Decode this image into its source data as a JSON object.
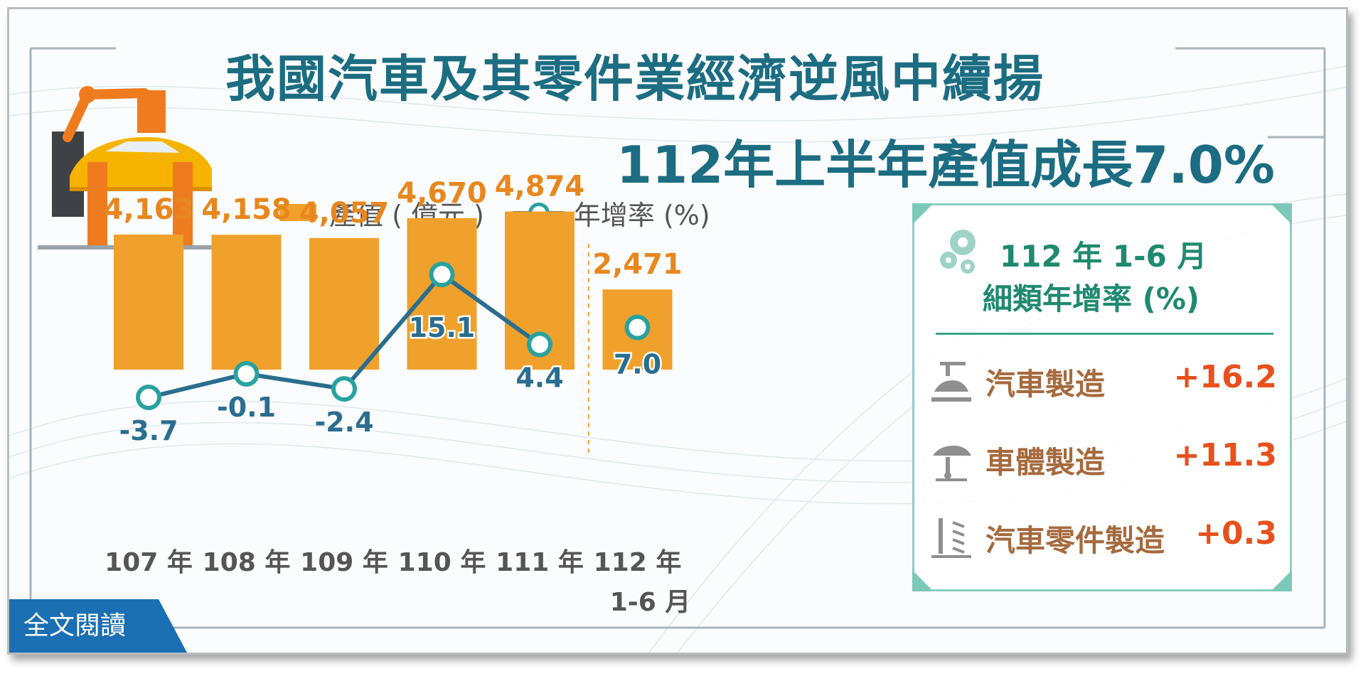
{
  "title": "我國汽車及其零件業經濟逆風中續揚",
  "subtitle": "112年上半年產值成長7.0%",
  "legend": {
    "bar": "產值 ( 億元 )",
    "line": "年增率 (%)"
  },
  "chart_data": {
    "type": "bar",
    "categories": [
      "107 年",
      "108 年",
      "109 年",
      "110 年",
      "111 年",
      "112 年\n1-6 月"
    ],
    "series": [
      {
        "name": "產值 ( 億元 )",
        "type": "bar",
        "values": [
          4163,
          4158,
          4057,
          4670,
          4874,
          2471
        ]
      },
      {
        "name": "年增率 (%)",
        "type": "line",
        "values": [
          -3.7,
          -0.1,
          -2.4,
          15.1,
          4.4,
          7.0
        ]
      }
    ],
    "bar_labels": [
      "4,163",
      "4,158",
      "4,057",
      "4,670",
      "4,874",
      "2,471"
    ],
    "line_labels": [
      "-3.7",
      "-0.1",
      "-2.4",
      "15.1",
      "4.4",
      "7.0"
    ],
    "line_connected_through": 5,
    "separator_before_last": true,
    "colors": {
      "bar": "#f0a12b",
      "line": "#2a6e8f",
      "marker": "#28a2a0",
      "bar_label": "#e8871e",
      "line_label": "#2a6e8f",
      "axis_label": "#555555"
    }
  },
  "side_panel": {
    "header_line1": "112 年 1-6 月",
    "header_line2": "細類年增率 (%)",
    "items": [
      {
        "name": "汽車製造",
        "value": "+16.2",
        "icon": "car-assembly-icon"
      },
      {
        "name": "車體製造",
        "value": "+11.3",
        "icon": "car-lift-icon"
      },
      {
        "name": "汽車零件製造",
        "value": "+0.3",
        "icon": "spring-parts-icon"
      }
    ]
  },
  "read_full_button": "全文閱讀"
}
